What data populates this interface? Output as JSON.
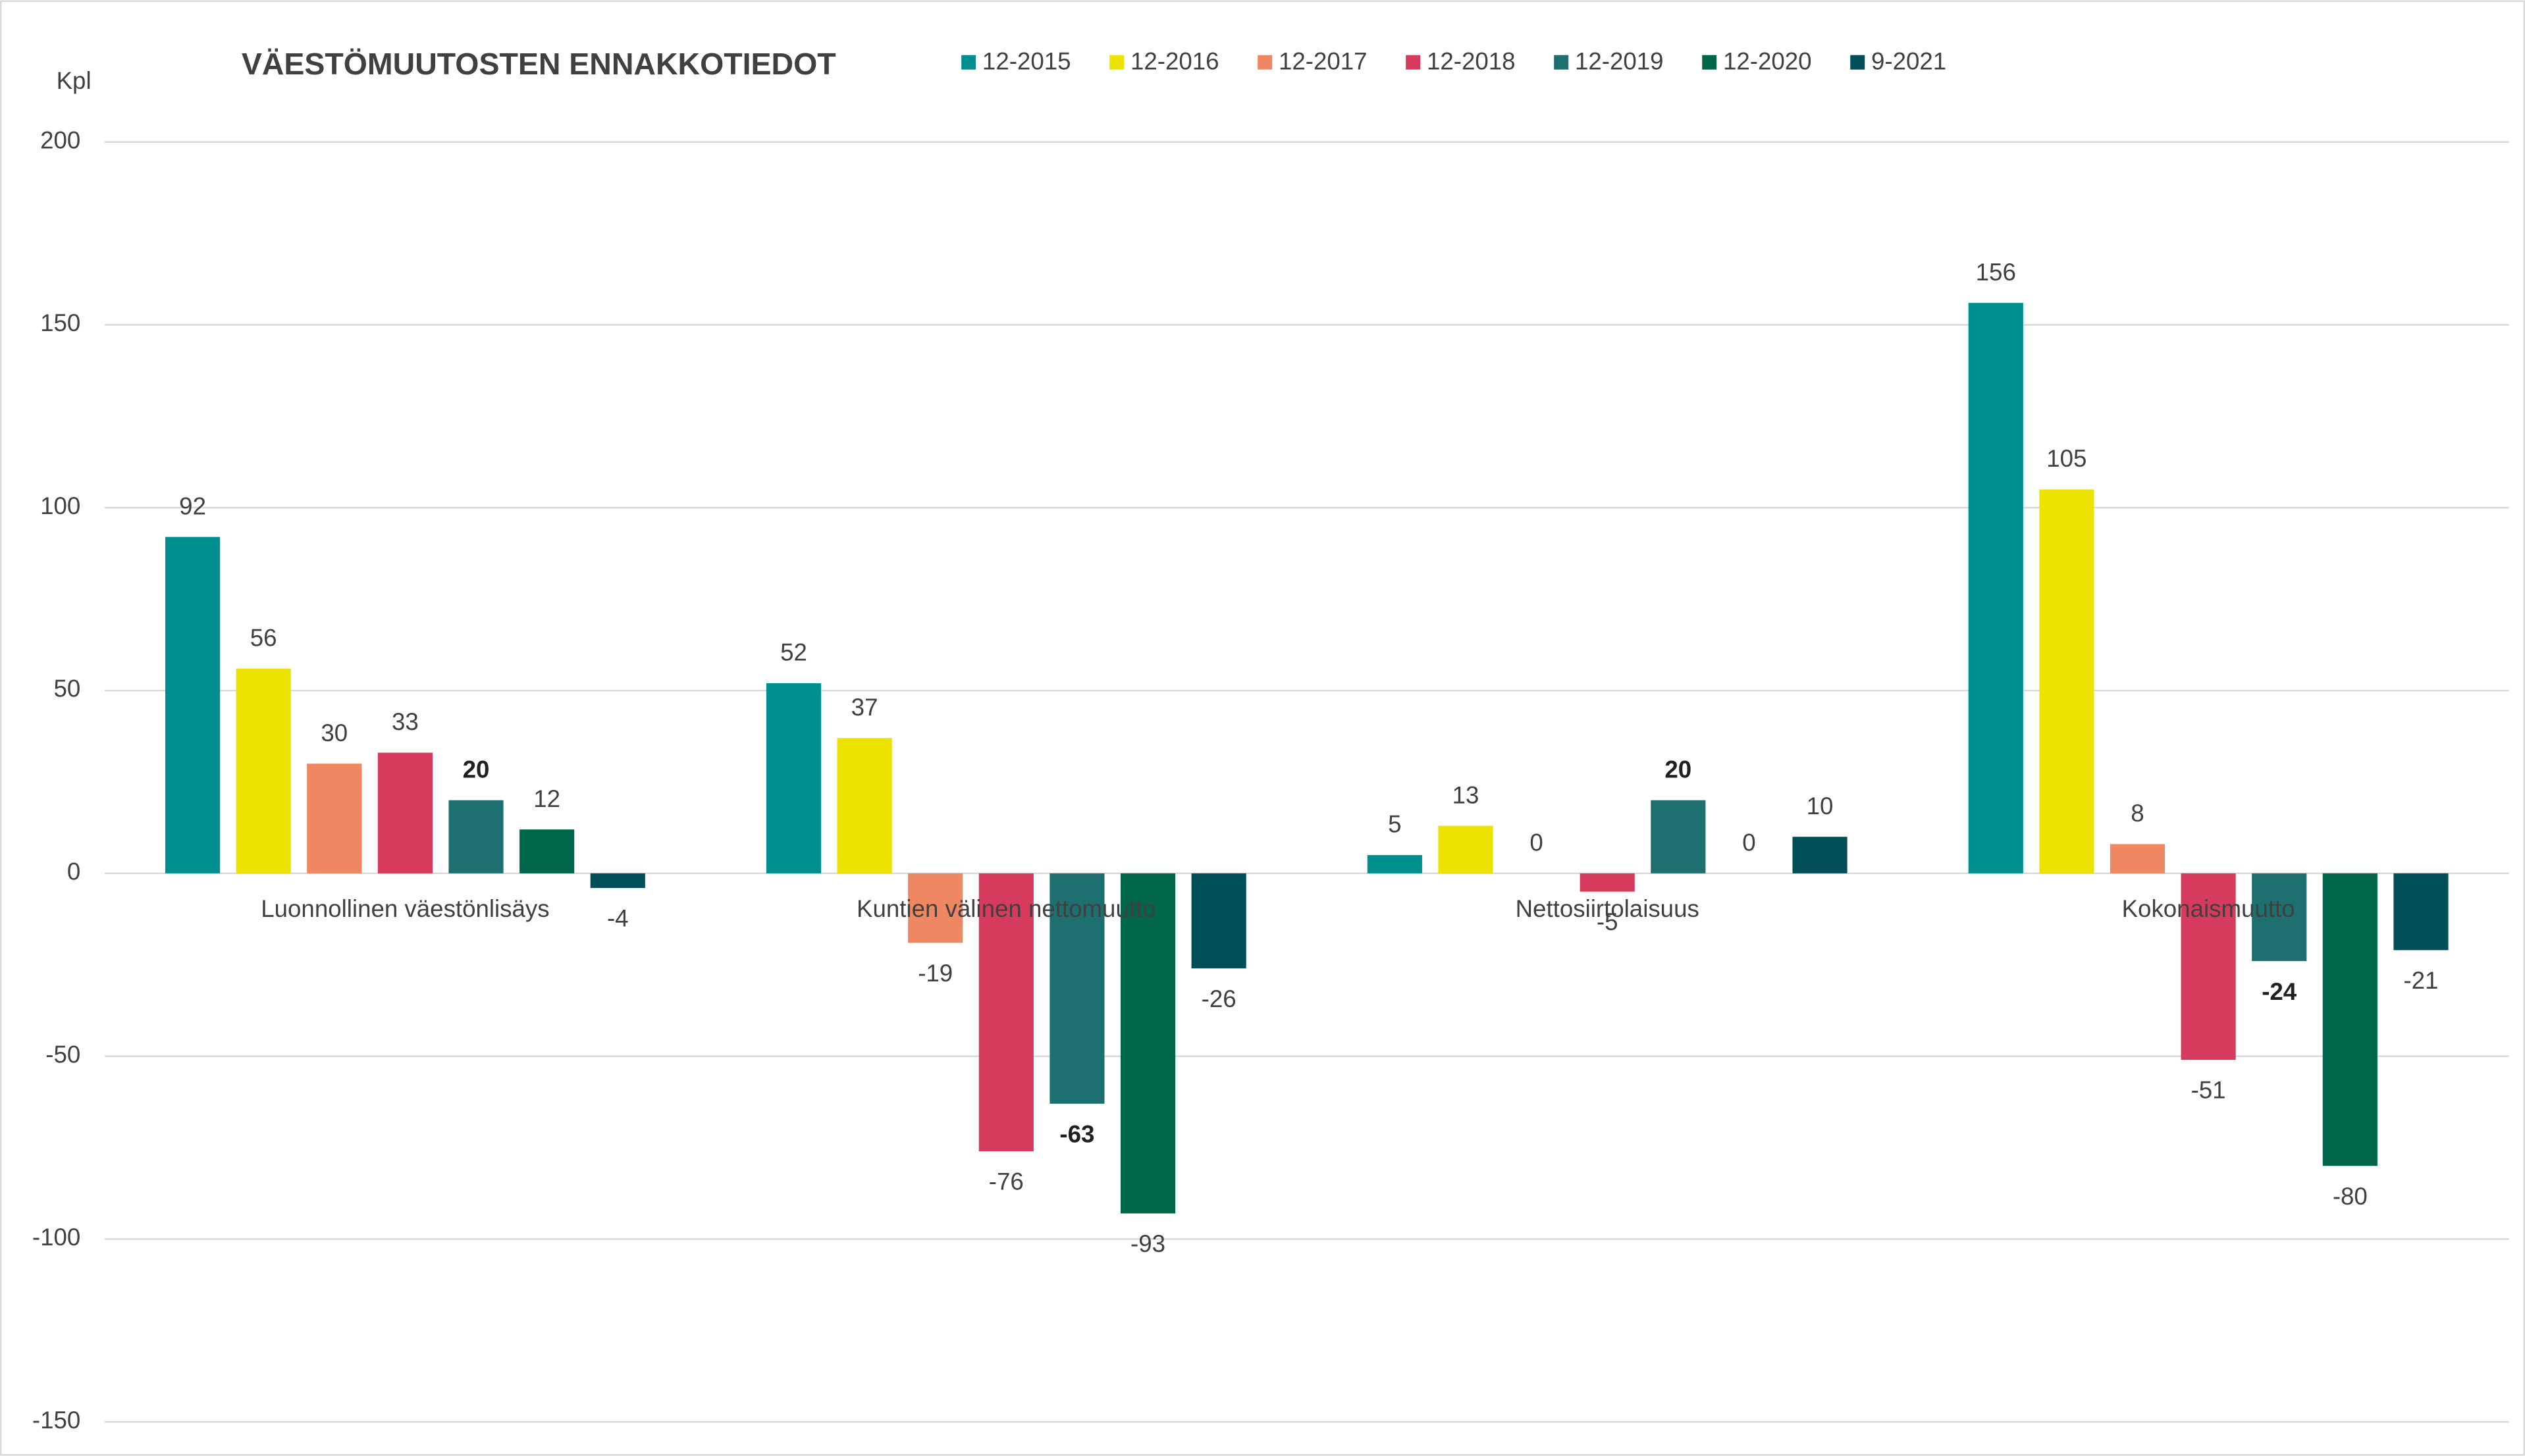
{
  "chart_data": {
    "type": "bar",
    "title": "VÄESTÖMUUTOSTEN ENNAKKOTIEDOT",
    "y_axis_label": "Kpl",
    "categories": [
      "Luonnollinen väestönlisäys",
      "Kuntien välinen nettomuutto",
      "Nettosiirtolaisuus",
      "Kokonaismuutto"
    ],
    "series": [
      {
        "name": "12-2015",
        "color": "#008f8f",
        "values": [
          92,
          52,
          5,
          156
        ]
      },
      {
        "name": "12-2016",
        "color": "#ece300",
        "values": [
          56,
          37,
          13,
          105
        ]
      },
      {
        "name": "12-2017",
        "color": "#f08763",
        "values": [
          30,
          -19,
          0,
          8
        ]
      },
      {
        "name": "12-2018",
        "color": "#d63b5d",
        "values": [
          33,
          -76,
          -5,
          -51
        ]
      },
      {
        "name": "12-2019",
        "color": "#1e6f6f",
        "values": [
          20,
          -63,
          20,
          -24
        ]
      },
      {
        "name": "12-2020",
        "color": "#006649",
        "values": [
          12,
          -93,
          0,
          -80
        ]
      },
      {
        "name": "9-2021",
        "color": "#004e58",
        "values": [
          -4,
          -26,
          10,
          -21
        ]
      }
    ],
    "ylim": [
      -150,
      200
    ],
    "yticks": [
      -150,
      -100,
      -50,
      0,
      50,
      100,
      150,
      200
    ],
    "grid": true,
    "legend": "top"
  }
}
